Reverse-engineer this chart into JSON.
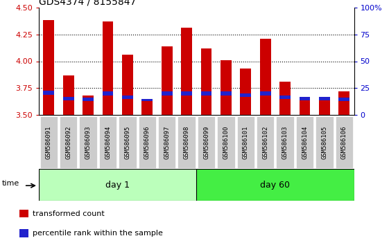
{
  "title": "GDS4374 / 8155847",
  "samples": [
    "GSM586091",
    "GSM586092",
    "GSM586093",
    "GSM586094",
    "GSM586095",
    "GSM586096",
    "GSM586097",
    "GSM586098",
    "GSM586099",
    "GSM586100",
    "GSM586101",
    "GSM586102",
    "GSM586103",
    "GSM586104",
    "GSM586105",
    "GSM586106"
  ],
  "transformed_count": [
    4.38,
    3.87,
    3.68,
    4.37,
    4.06,
    3.63,
    4.14,
    4.31,
    4.12,
    4.01,
    3.93,
    4.21,
    3.81,
    3.67,
    3.65,
    3.72
  ],
  "percentile_base": [
    3.69,
    3.64,
    3.63,
    3.68,
    3.65,
    3.63,
    3.68,
    3.68,
    3.68,
    3.68,
    3.67,
    3.68,
    3.65,
    3.64,
    3.64,
    3.63
  ],
  "percentile_height": [
    0.04,
    0.03,
    0.03,
    0.04,
    0.03,
    0.02,
    0.04,
    0.04,
    0.04,
    0.04,
    0.03,
    0.04,
    0.03,
    0.03,
    0.03,
    0.03
  ],
  "day1_samples": 8,
  "day60_samples": 8,
  "ylim": [
    3.5,
    4.5
  ],
  "yticks_left": [
    3.5,
    3.75,
    4.0,
    4.25,
    4.5
  ],
  "yticks_right": [
    0,
    25,
    50,
    75,
    100
  ],
  "bar_color": "#cc0000",
  "percentile_color": "#2222cc",
  "day1_color": "#bbffbb",
  "day60_color": "#44ee44",
  "grid_color": "#000000",
  "bg_color": "#ffffff",
  "xticklabel_bg": "#cccccc",
  "bar_width": 0.55,
  "figsize": [
    5.61,
    3.54
  ],
  "dpi": 100,
  "grid_yticks": [
    3.75,
    4.0,
    4.25
  ],
  "left_tick_color": "#cc0000",
  "right_tick_color": "#0000cc"
}
